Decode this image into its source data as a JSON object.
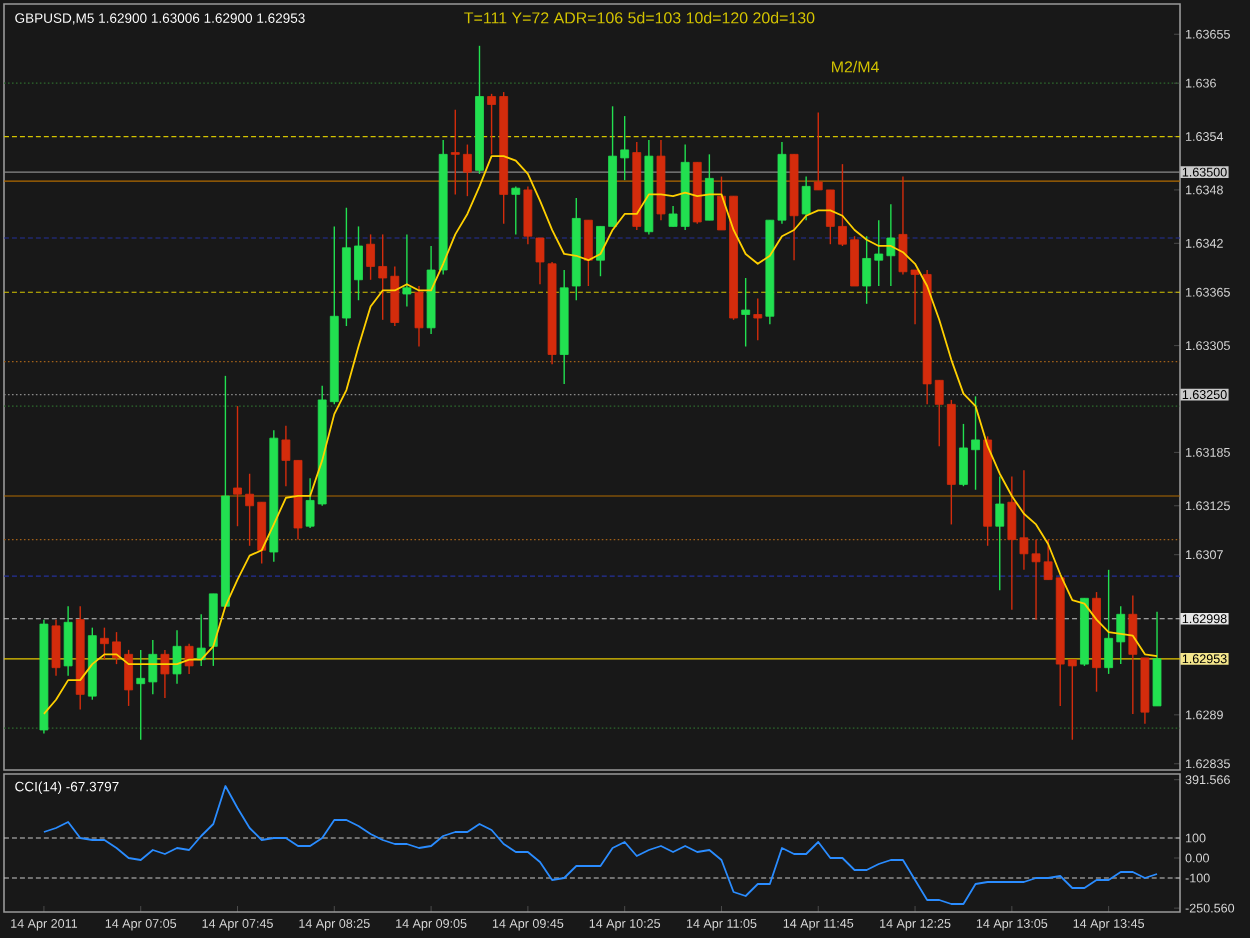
{
  "chart_data": [
    {
      "type": "candlestick",
      "title": "GBPUSD,M5  1.62900 1.63006 1.62900 1.62953",
      "annotations": [
        "T=111 Y=72 ADR=106 5d=103 10d=120 20d=130",
        "M2/M4"
      ],
      "categories": [
        null,
        null,
        null,
        null,
        null,
        null,
        null,
        null,
        null,
        null,
        null,
        null,
        null,
        null,
        null,
        null,
        null,
        null,
        null,
        null,
        null,
        null,
        null,
        null,
        null,
        null,
        null,
        null,
        null,
        null,
        null,
        null,
        null,
        null,
        null,
        null,
        null,
        null,
        null,
        null,
        null,
        null,
        null,
        null,
        null,
        null,
        null,
        null,
        null,
        null,
        null,
        null,
        null,
        null,
        null,
        null,
        null,
        null,
        null,
        null,
        null,
        null,
        null,
        null,
        null,
        null,
        null,
        null,
        null,
        null,
        null,
        null,
        null,
        null,
        null,
        null,
        null,
        null,
        null,
        null,
        null,
        null,
        null,
        null,
        null,
        null,
        null,
        null,
        null,
        null,
        null,
        null,
        null
      ],
      "ohlc": [
        [
          1.62873,
          1.62997,
          1.62869,
          1.62992
        ],
        [
          1.6299,
          1.62997,
          1.62934,
          1.62943
        ],
        [
          1.62945,
          1.63012,
          1.62934,
          1.62994
        ],
        [
          1.62997,
          1.63012,
          1.62896,
          1.62913
        ],
        [
          1.62911,
          1.62988,
          1.62907,
          1.62979
        ],
        [
          1.62976,
          1.62988,
          1.62952,
          1.6297
        ],
        [
          1.62972,
          1.62983,
          1.62947,
          1.62954
        ],
        [
          1.62958,
          1.62963,
          1.629,
          1.62918
        ],
        [
          1.62925,
          1.62963,
          1.62862,
          1.62931
        ],
        [
          1.62927,
          1.62974,
          1.62913,
          1.62958
        ],
        [
          1.62958,
          1.62963,
          1.62909,
          1.62936
        ],
        [
          1.62936,
          1.62985,
          1.62925,
          1.62967
        ],
        [
          1.62967,
          1.6297,
          1.62936,
          1.62945
        ],
        [
          1.62952,
          1.63003,
          1.62945,
          1.62965
        ],
        [
          1.62967,
          1.63026,
          1.62945,
          1.63026
        ],
        [
          1.63012,
          1.63271,
          1.63012,
          1.63136
        ],
        [
          1.63145,
          1.63237,
          1.63102,
          1.63138
        ],
        [
          1.63138,
          1.63161,
          1.6308,
          1.63125
        ],
        [
          1.63129,
          1.63129,
          1.6306,
          1.63075
        ],
        [
          1.63073,
          1.6321,
          1.63062,
          1.63201
        ],
        [
          1.63199,
          1.63215,
          1.63147,
          1.63176
        ],
        [
          1.63176,
          1.63176,
          1.63087,
          1.631
        ],
        [
          1.63102,
          1.63156,
          1.631,
          1.63131
        ],
        [
          1.63127,
          1.6326,
          1.63125,
          1.63244
        ],
        [
          1.63242,
          1.63439,
          1.63239,
          1.63338
        ],
        [
          1.63336,
          1.6346,
          1.63327,
          1.63415
        ],
        [
          1.63379,
          1.63439,
          1.63356,
          1.63417
        ],
        [
          1.63419,
          1.6343,
          1.63379,
          1.63394
        ],
        [
          1.63394,
          1.6343,
          1.63334,
          1.63381
        ],
        [
          1.63383,
          1.63394,
          1.63327,
          1.63331
        ],
        [
          1.63363,
          1.6343,
          1.63349,
          1.6337
        ],
        [
          1.63365,
          1.63372,
          1.63304,
          1.63325
        ],
        [
          1.63325,
          1.63417,
          1.63318,
          1.6339
        ],
        [
          1.6339,
          1.63536,
          1.63385,
          1.6352
        ],
        [
          1.63522,
          1.6357,
          1.63475,
          1.6352
        ],
        [
          1.6352,
          1.63531,
          1.63473,
          1.635
        ],
        [
          1.63502,
          1.63642,
          1.63498,
          1.63585
        ],
        [
          1.63585,
          1.63588,
          1.6352,
          1.63576
        ],
        [
          1.63585,
          1.6359,
          1.63442,
          1.63475
        ],
        [
          1.63475,
          1.63484,
          1.6343,
          1.63482
        ],
        [
          1.6348,
          1.63484,
          1.63419,
          1.63428
        ],
        [
          1.63426,
          1.63426,
          1.63374,
          1.63399
        ],
        [
          1.63397,
          1.63399,
          1.63284,
          1.63295
        ],
        [
          1.63295,
          1.6339,
          1.63262,
          1.6337
        ],
        [
          1.63372,
          1.63471,
          1.63356,
          1.63448
        ],
        [
          1.63446,
          1.63446,
          1.63372,
          1.63401
        ],
        [
          1.63401,
          1.63439,
          1.63383,
          1.63439
        ],
        [
          1.63439,
          1.63574,
          1.63439,
          1.63518
        ],
        [
          1.63516,
          1.63563,
          1.63491,
          1.63525
        ],
        [
          1.63522,
          1.63534,
          1.63435,
          1.63439
        ],
        [
          1.63433,
          1.63536,
          1.6343,
          1.63518
        ],
        [
          1.63518,
          1.63536,
          1.63446,
          1.63453
        ],
        [
          1.63439,
          1.63462,
          1.63439,
          1.63453
        ],
        [
          1.63439,
          1.63531,
          1.63435,
          1.63511
        ],
        [
          1.63511,
          1.63511,
          1.63442,
          1.63444
        ],
        [
          1.63446,
          1.6352,
          1.63446,
          1.63493
        ],
        [
          1.63473,
          1.63495,
          1.63435,
          1.63435
        ],
        [
          1.63473,
          1.63473,
          1.63334,
          1.63336
        ],
        [
          1.6334,
          1.63381,
          1.63304,
          1.63345
        ],
        [
          1.6334,
          1.63358,
          1.63311,
          1.63336
        ],
        [
          1.63338,
          1.63446,
          1.63329,
          1.63446
        ],
        [
          1.63446,
          1.63534,
          1.63442,
          1.6352
        ],
        [
          1.6352,
          1.6352,
          1.63401,
          1.63451
        ],
        [
          1.63453,
          1.63495,
          1.63446,
          1.63484
        ],
        [
          1.63489,
          1.63567,
          1.6348,
          1.6348
        ],
        [
          1.6348,
          1.6348,
          1.63419,
          1.63439
        ],
        [
          1.63439,
          1.63509,
          1.63417,
          1.63419
        ],
        [
          1.63424,
          1.63428,
          1.63372,
          1.63372
        ],
        [
          1.63372,
          1.63428,
          1.63352,
          1.63403
        ],
        [
          1.63401,
          1.63446,
          1.63372,
          1.63408
        ],
        [
          1.63406,
          1.63464,
          1.63372,
          1.63426
        ],
        [
          1.6343,
          1.63495,
          1.63385,
          1.63388
        ],
        [
          1.6339,
          1.6339,
          1.63329,
          1.63385
        ],
        [
          1.63385,
          1.6339,
          1.63239,
          1.63262
        ],
        [
          1.63266,
          1.63266,
          1.63192,
          1.63239
        ],
        [
          1.63239,
          1.63244,
          1.63104,
          1.63149
        ],
        [
          1.63149,
          1.63217,
          1.63147,
          1.6319
        ],
        [
          1.63188,
          1.63248,
          1.63143,
          1.63199
        ],
        [
          1.63199,
          1.63203,
          1.6308,
          1.63102
        ],
        [
          1.63102,
          1.63158,
          1.6303,
          1.63127
        ],
        [
          1.63129,
          1.63158,
          1.63008,
          1.63087
        ],
        [
          1.63089,
          1.63165,
          1.63053,
          1.63071
        ],
        [
          1.63071,
          1.63087,
          1.62997,
          1.63062
        ],
        [
          1.63062,
          1.63087,
          1.63042,
          1.63042
        ],
        [
          1.63044,
          1.63044,
          1.629,
          1.62947
        ],
        [
          1.62952,
          1.62952,
          1.62862,
          1.62945
        ],
        [
          1.62947,
          1.63021,
          1.62945,
          1.63021
        ],
        [
          1.63021,
          1.63028,
          1.62916,
          1.62943
        ],
        [
          1.62943,
          1.63053,
          1.62936,
          1.62976
        ],
        [
          1.62972,
          1.63012,
          1.62947,
          1.63003
        ],
        [
          1.63003,
          1.63024,
          1.62891,
          1.62958
        ],
        [
          1.62954,
          1.62954,
          1.6288,
          1.62893
        ],
        [
          1.629,
          1.63006,
          1.629,
          1.62953
        ]
      ],
      "colors": [
        "#22e050",
        "#d42c0c",
        "#22e050",
        "#d42c0c",
        "#22e050",
        "#d42c0c",
        "#d42c0c",
        "#d42c0c",
        "#22e050",
        "#22e050",
        "#d42c0c",
        "#22e050",
        "#d42c0c",
        "#22e050",
        "#22e050",
        "#22e050",
        "#d42c0c",
        "#d42c0c",
        "#d42c0c",
        "#22e050",
        "#d42c0c",
        "#d42c0c",
        "#22e050",
        "#22e050",
        "#22e050",
        "#22e050",
        "#22e050",
        "#d42c0c",
        "#d42c0c",
        "#d42c0c",
        "#22e050",
        "#d42c0c",
        "#22e050",
        "#22e050",
        "#d42c0c",
        "#d42c0c",
        "#22e050",
        "#d42c0c",
        "#d42c0c",
        "#22e050",
        "#d42c0c",
        "#d42c0c",
        "#d42c0c",
        "#22e050",
        "#22e050",
        "#d42c0c",
        "#22e050",
        "#22e050",
        "#22e050",
        "#d42c0c",
        "#22e050",
        "#d42c0c",
        "#22e050",
        "#22e050",
        "#d42c0c",
        "#22e050",
        "#d42c0c",
        "#d42c0c",
        "#22e050",
        "#d42c0c",
        "#22e050",
        "#22e050",
        "#d42c0c",
        "#22e050",
        "#d42c0c",
        "#d42c0c",
        "#d42c0c",
        "#d42c0c",
        "#22e050",
        "#22e050",
        "#22e050",
        "#d42c0c",
        "#d42c0c",
        "#d42c0c",
        "#d42c0c",
        "#d42c0c",
        "#22e050",
        "#22e050",
        "#d42c0c",
        "#22e050",
        "#d42c0c",
        "#d42c0c",
        "#d42c0c",
        "#d42c0c",
        "#d42c0c",
        "#d42c0c",
        "#22e050",
        "#d42c0c",
        "#22e050",
        "#22e050",
        "#d42c0c",
        "#d42c0c",
        "#22e050"
      ],
      "series": [
        {
          "type": "line",
          "color": "#ffd000",
          "values": [
            1.62891,
            1.62907,
            1.62929,
            1.62929,
            1.62947,
            1.62958,
            1.62958,
            1.62947,
            1.62947,
            1.62947,
            1.62947,
            1.62947,
            1.62952,
            1.62952,
            1.62967,
            1.63012,
            1.63042,
            1.63069,
            1.63075,
            1.63104,
            1.63134,
            1.63136,
            1.63136,
            1.63176,
            1.63228,
            1.63255,
            1.63304,
            1.63349,
            1.63367,
            1.63367,
            1.63374,
            1.63367,
            1.63367,
            1.63397,
            1.6343,
            1.63453,
            1.63484,
            1.63518,
            1.63518,
            1.63513,
            1.63498,
            1.63468,
            1.63435,
            1.63408,
            1.63406,
            1.63401,
            1.63408,
            1.63435,
            1.63453,
            1.63453,
            1.63475,
            1.63475,
            1.63473,
            1.63477,
            1.63473,
            1.63475,
            1.63475,
            1.63435,
            1.63408,
            1.63397,
            1.63406,
            1.63428,
            1.63435,
            1.63451,
            1.63457,
            1.63457,
            1.63451,
            1.63435,
            1.63424,
            1.63417,
            1.63417,
            1.6341,
            1.63397,
            1.63372,
            1.63334,
            1.63289,
            1.63251,
            1.63237,
            1.63192,
            1.63161,
            1.63136,
            1.63116,
            1.63104,
            1.63082,
            1.63048,
            1.63019,
            1.63015,
            1.62997,
            1.62983,
            1.62981,
            1.62979,
            1.62958,
            1.62956
          ]
        }
      ],
      "ylim": [
        1.62828,
        1.63689
      ],
      "yticks": [
        1.63655,
        1.636,
        1.6354,
        1.6348,
        1.6342,
        1.63365,
        1.63305,
        1.63185,
        1.63125,
        1.6307,
        1.6289,
        1.62835
      ],
      "tick_labels": "y",
      "ref_lines": [
        {
          "axis": "y",
          "value": 1.636,
          "color": "#2e6b2e",
          "line_style": "dotted"
        },
        {
          "axis": "y",
          "value": 1.6354,
          "color": "#d4c400",
          "line_style": "dashed"
        },
        {
          "axis": "y",
          "value": 1.635,
          "color": "#8a8a8a",
          "line_style": "solid",
          "label": "1.63500"
        },
        {
          "axis": "y",
          "value": 1.6349,
          "color": "#b06a00",
          "line_style": "solid"
        },
        {
          "axis": "y",
          "value": 1.63426,
          "color": "#24309a",
          "line_style": "dashed"
        },
        {
          "axis": "y",
          "value": 1.63365,
          "color": "#d4c400",
          "line_style": "dashed"
        },
        {
          "axis": "y",
          "value": 1.63287,
          "color": "#a0601a",
          "line_style": "dotted"
        },
        {
          "axis": "y",
          "value": 1.6325,
          "color": "#8a8a8a",
          "line_style": "dotted",
          "label": "1.63250"
        },
        {
          "axis": "y",
          "value": 1.63237,
          "color": "#2e6b2e",
          "line_style": "dotted"
        },
        {
          "axis": "y",
          "value": 1.63136,
          "color": "#b06a00",
          "line_style": "solid"
        },
        {
          "axis": "y",
          "value": 1.63087,
          "color": "#a0601a",
          "line_style": "dotted"
        },
        {
          "axis": "y",
          "value": 1.63046,
          "color": "#24309a",
          "line_style": "dashed"
        },
        {
          "axis": "y",
          "value": 1.62998,
          "color": "#c8c8c8",
          "line_style": "dashed",
          "label": "1.62998"
        },
        {
          "axis": "y",
          "value": 1.62953,
          "color": "#e6c800",
          "line_style": "solid",
          "label": "1.62953"
        },
        {
          "axis": "y",
          "value": 1.62875,
          "color": "#2e6b2e",
          "line_style": "dotted"
        }
      ]
    },
    {
      "type": "line",
      "title": "CCI(14) -67.3797",
      "categories": [
        "14 Apr 2011",
        null,
        null,
        null,
        null,
        null,
        null,
        null,
        "14 Apr 07:05",
        null,
        null,
        null,
        null,
        null,
        null,
        null,
        "14 Apr 07:45",
        null,
        null,
        null,
        null,
        null,
        null,
        null,
        "14 Apr 08:25",
        null,
        null,
        null,
        null,
        null,
        null,
        null,
        "14 Apr 09:05",
        null,
        null,
        null,
        null,
        null,
        null,
        null,
        "14 Apr 09:45",
        null,
        null,
        null,
        null,
        null,
        null,
        null,
        "14 Apr 10:25",
        null,
        null,
        null,
        null,
        null,
        null,
        null,
        "14 Apr 11:05",
        null,
        null,
        null,
        null,
        null,
        null,
        null,
        "14 Apr 11:45",
        null,
        null,
        null,
        null,
        null,
        null,
        null,
        "14 Apr 12:25",
        null,
        null,
        null,
        null,
        null,
        null,
        null,
        "14 Apr 13:05",
        null,
        null,
        null,
        null,
        null,
        null,
        null,
        "14 Apr 13:45",
        null,
        null,
        null,
        null
      ],
      "series": [
        {
          "color": "#2a8cff",
          "values": [
            130,
            150,
            180,
            100,
            90,
            90,
            50,
            0,
            -10,
            40,
            20,
            50,
            40,
            110,
            170,
            360,
            250,
            150,
            90,
            100,
            100,
            60,
            60,
            100,
            190,
            190,
            160,
            120,
            90,
            70,
            70,
            50,
            60,
            110,
            130,
            130,
            170,
            140,
            70,
            30,
            30,
            -20,
            -110,
            -100,
            -40,
            -40,
            -40,
            50,
            80,
            10,
            40,
            60,
            30,
            60,
            30,
            40,
            -10,
            -170,
            -190,
            -130,
            -130,
            50,
            20,
            20,
            80,
            0,
            0,
            -60,
            -60,
            -30,
            -10,
            -10,
            -110,
            -210,
            -210,
            -230,
            -230,
            -130,
            -120,
            -120,
            -120,
            -120,
            -100,
            -100,
            -90,
            -150,
            -150,
            -110,
            -110,
            -70,
            -70,
            -100,
            -80
          ]
        }
      ],
      "ylim": [
        -270,
        420
      ],
      "yticks": [
        391.566,
        100,
        {
          "value": 0,
          "label": "0.00"
        },
        -100,
        {
          "value": -250.56,
          "label": "-250.560"
        }
      ],
      "ref_lines": [
        {
          "axis": "y",
          "value": 100,
          "color": "#c8c8c8",
          "line_style": "dashed"
        },
        {
          "axis": "y",
          "value": -100,
          "color": "#c8c8c8",
          "line_style": "dashed"
        }
      ]
    }
  ]
}
